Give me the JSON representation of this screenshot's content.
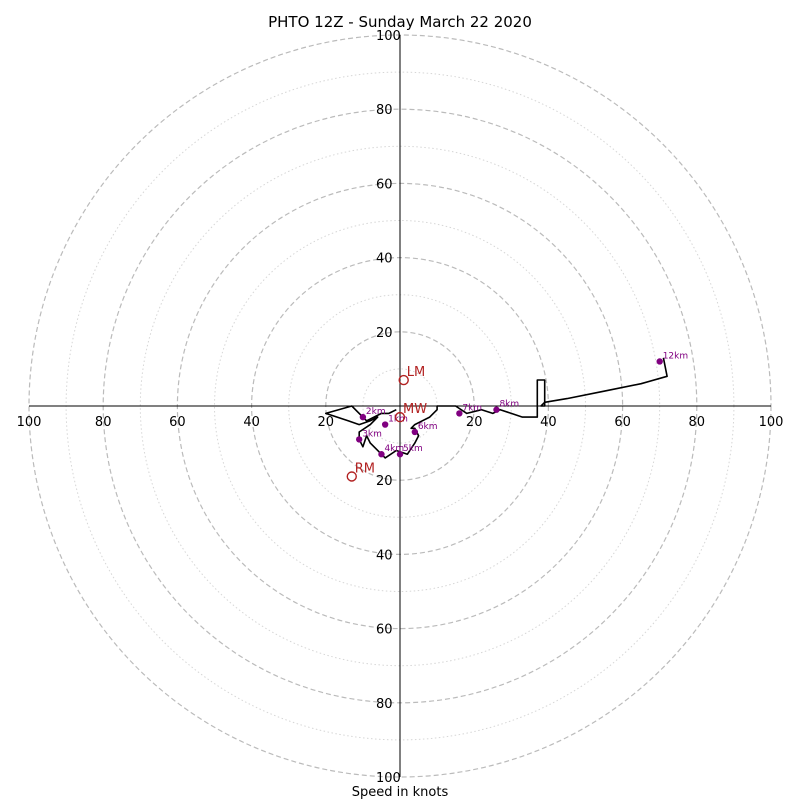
{
  "chart_data": {
    "type": "scatter",
    "title": "PHTO 12Z - Sunday March 22 2020",
    "xlabel": "Speed in knots",
    "ylabel": "",
    "xlim": [
      -100,
      100
    ],
    "ylim": [
      -100,
      100
    ],
    "rings_major": [
      20,
      40,
      60,
      80,
      100
    ],
    "rings_minor": [
      10,
      30,
      50,
      70,
      90
    ],
    "x_ticks": [
      {
        "value": -100,
        "label": "100"
      },
      {
        "value": -80,
        "label": "80"
      },
      {
        "value": -60,
        "label": "60"
      },
      {
        "value": -40,
        "label": "40"
      },
      {
        "value": -20,
        "label": "20"
      },
      {
        "value": 20,
        "label": "20"
      },
      {
        "value": 40,
        "label": "40"
      },
      {
        "value": 60,
        "label": "60"
      },
      {
        "value": 80,
        "label": "80"
      },
      {
        "value": 100,
        "label": "100"
      }
    ],
    "y_ticks": [
      {
        "value": 100,
        "label": "100"
      },
      {
        "value": 80,
        "label": "80"
      },
      {
        "value": 60,
        "label": "60"
      },
      {
        "value": 40,
        "label": "40"
      },
      {
        "value": 20,
        "label": "20"
      },
      {
        "value": -20,
        "label": "20"
      },
      {
        "value": -40,
        "label": "40"
      },
      {
        "value": -60,
        "label": "60"
      },
      {
        "value": -80,
        "label": "80"
      },
      {
        "value": -100,
        "label": "100"
      }
    ],
    "hodograph": {
      "color": "#000000",
      "u": [
        -1,
        -3,
        -5,
        -7,
        -9,
        -11,
        -13,
        -20,
        -14,
        -11,
        -8,
        -6,
        -8,
        -11,
        -11,
        -10,
        -9,
        -8,
        -4,
        -1,
        2,
        4,
        5,
        4,
        3,
        4,
        6,
        8,
        10,
        10,
        12,
        15,
        18,
        22,
        25,
        27,
        30,
        33,
        37,
        37,
        39,
        39,
        38,
        39,
        45,
        55,
        65,
        72,
        71
      ],
      "v": [
        -1,
        -2,
        -2,
        -3,
        -4,
        -2,
        0,
        -2,
        -4,
        -5,
        -4,
        -3,
        -5,
        -7,
        -9,
        -11,
        -8,
        -10,
        -14,
        -12,
        -13,
        -10,
        -8,
        -6,
        -6,
        -5,
        -4,
        -3,
        -1,
        0,
        0,
        0,
        -2,
        -1,
        -2,
        -1,
        -2,
        -3,
        -3,
        7,
        7,
        0,
        0,
        1,
        2,
        4,
        6,
        8,
        13
      ]
    },
    "height_markers": {
      "color": "#800080",
      "points": [
        {
          "label": "1km",
          "u": -4,
          "v": -5
        },
        {
          "label": "2km",
          "u": -10,
          "v": -3
        },
        {
          "label": "3km",
          "u": -11,
          "v": -9
        },
        {
          "label": "4km",
          "u": -5,
          "v": -13
        },
        {
          "label": "5km",
          "u": 0,
          "v": -13
        },
        {
          "label": "6km",
          "u": 4,
          "v": -7
        },
        {
          "label": "7km",
          "u": 16,
          "v": -2
        },
        {
          "label": "8km",
          "u": 26,
          "v": -1
        },
        {
          "label": "12km",
          "u": 70,
          "v": 12
        }
      ]
    },
    "storm_motions": {
      "color": "#b22222",
      "points": [
        {
          "label": "LM",
          "u": 1,
          "v": 7
        },
        {
          "label": "RM",
          "u": -13,
          "v": -19
        },
        {
          "label": "MW",
          "u": 0,
          "v": -3
        }
      ]
    }
  }
}
